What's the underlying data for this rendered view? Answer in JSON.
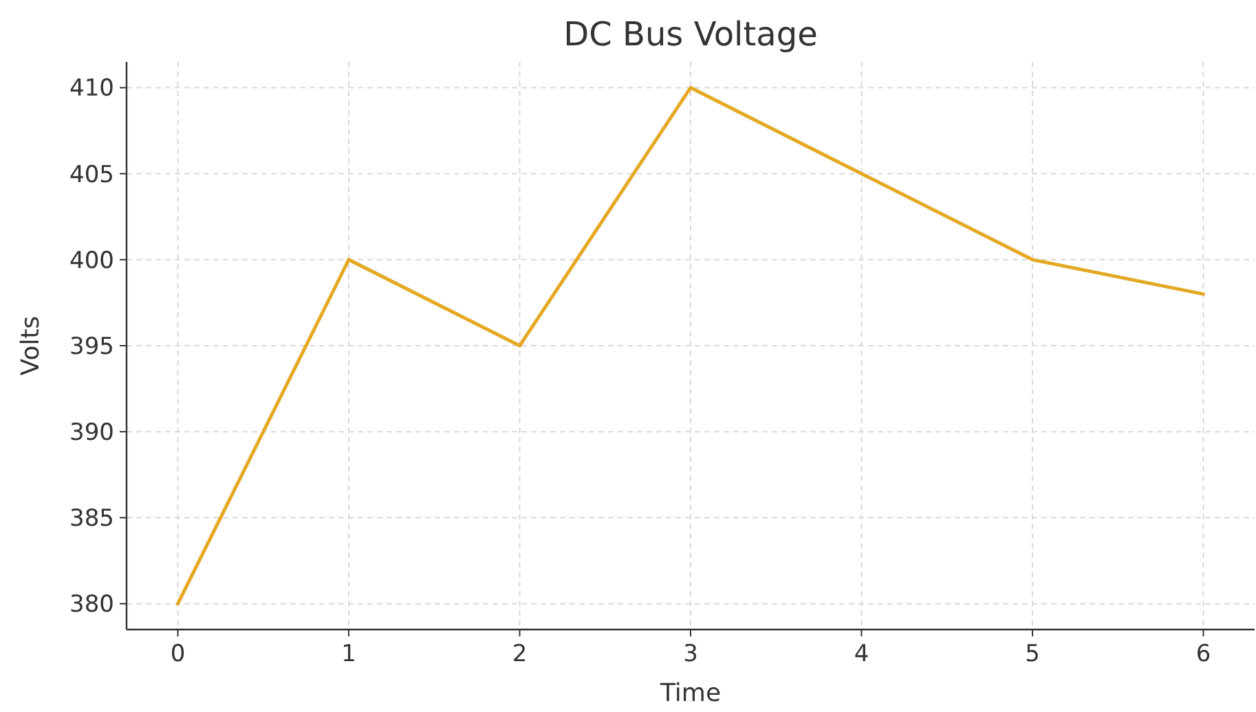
{
  "chart_data": {
    "type": "line",
    "title": "DC Bus Voltage",
    "xlabel": "Time",
    "ylabel": "Volts",
    "x": [
      0,
      1,
      2,
      3,
      4,
      5,
      6
    ],
    "series": [
      {
        "color": "#e5a823",
        "values": [
          380,
          400,
          395,
          410,
          405,
          400,
          398
        ]
      }
    ],
    "xlim": [
      -0.3,
      6.3
    ],
    "xticks": [
      0,
      1,
      2,
      3,
      4,
      5,
      6
    ],
    "ylim": [
      378.5,
      411.5
    ],
    "yticks": [
      380,
      385,
      390,
      395,
      400,
      405,
      410
    ],
    "grid": true,
    "marker": "none",
    "line_style": "solid"
  }
}
